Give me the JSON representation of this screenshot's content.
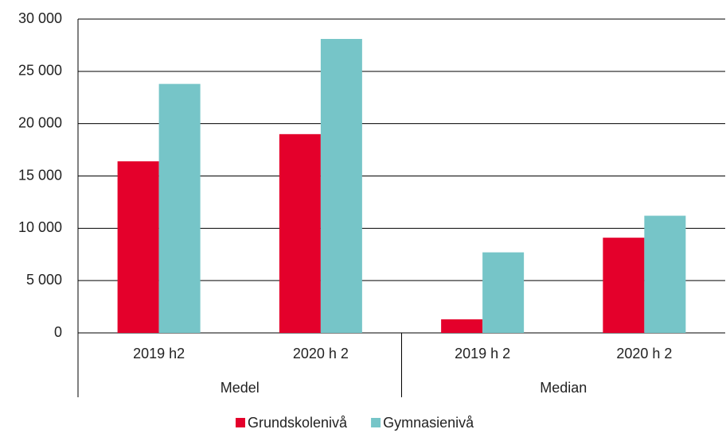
{
  "chart_data": {
    "type": "bar",
    "categories": [
      "2019 h2",
      "2020 h 2",
      "2019 h 2",
      "2020 h 2"
    ],
    "groups": [
      "Medel",
      "Median"
    ],
    "series": [
      {
        "name": "Grundskolenivå",
        "color": "#e4002b",
        "values": [
          16400,
          19000,
          1300,
          9100
        ]
      },
      {
        "name": "Gymnasienivå",
        "color": "#76c5c8",
        "values": [
          23800,
          28100,
          7700,
          11200
        ]
      }
    ],
    "ylim": [
      0,
      30000
    ],
    "yticks": [
      0,
      {
        "value": 5000,
        "label": "5 000"
      },
      {
        "value": 10000,
        "label": "10 000"
      },
      {
        "value": 15000,
        "label": "15 000"
      },
      {
        "value": 20000,
        "label": "20 000"
      },
      {
        "value": 25000,
        "label": "25 000"
      },
      {
        "value": 30000,
        "label": "30 000"
      }
    ],
    "grid": true,
    "legend": "bottom"
  }
}
